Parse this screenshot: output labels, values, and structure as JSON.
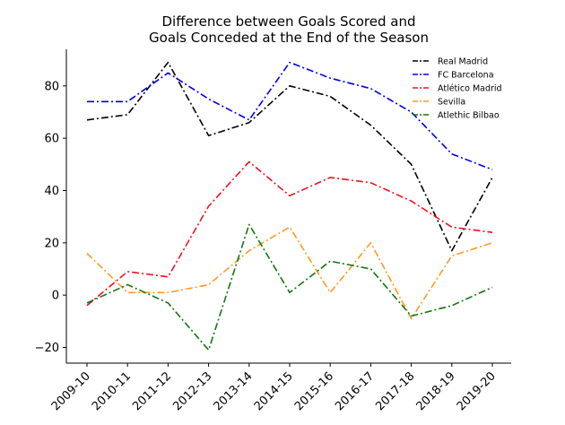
{
  "chart_data": {
    "type": "line",
    "title_lines": [
      "Difference between Goals Scored and",
      "Goals Conceded at the End of the Season"
    ],
    "xlabel": "",
    "ylabel": "",
    "categories": [
      "2009-10",
      "2010-11",
      "2011-12",
      "2012-13",
      "2013-14",
      "2014-15",
      "2015-16",
      "2016-17",
      "2017-18",
      "2018-19",
      "2019-20"
    ],
    "ylim": [
      -26,
      94
    ],
    "yticks": [
      -20,
      0,
      20,
      40,
      60,
      80
    ],
    "yticklabels": [
      "−20",
      "0",
      "20",
      "40",
      "60",
      "80"
    ],
    "legend_position": "top-right",
    "grid": false,
    "series": [
      {
        "name": "Real Madrid",
        "color": "#000000",
        "values": [
          67,
          69,
          89,
          61,
          66,
          80,
          76,
          65,
          50,
          17,
          45
        ]
      },
      {
        "name": "FC Barcelona",
        "color": "#0000ee",
        "values": [
          74,
          74,
          85,
          75,
          67,
          89,
          83,
          79,
          70,
          54,
          48
        ]
      },
      {
        "name": "Atlético Madrid",
        "color": "#ee1122",
        "values": [
          -4,
          9,
          7,
          34,
          51,
          38,
          45,
          43,
          36,
          26,
          24
        ]
      },
      {
        "name": "Sevilla",
        "color": "#ff9922",
        "values": [
          16,
          1,
          1,
          4,
          17,
          26,
          1,
          20,
          -9,
          15,
          20
        ]
      },
      {
        "name": "Atlethic Bilbao",
        "color": "#117711",
        "values": [
          -3,
          4,
          -3,
          -21,
          27,
          1,
          13,
          10,
          -8,
          -4,
          3
        ]
      }
    ]
  }
}
